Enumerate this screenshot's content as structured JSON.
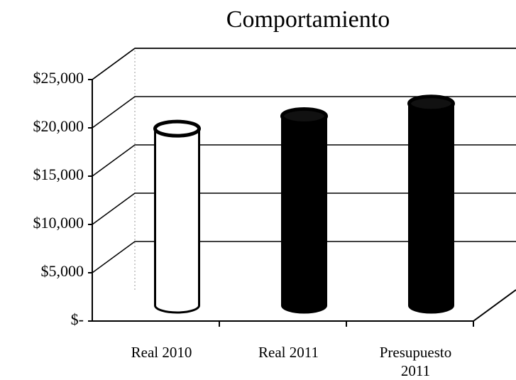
{
  "chart_data": {
    "type": "bar",
    "title": "Comportamiento",
    "categories": [
      "Real 2010",
      "Real 2011",
      "Presupuesto 2011"
    ],
    "values": [
      18300,
      19600,
      20900
    ],
    "colors": [
      "#ffffff",
      "#000000",
      "#000000"
    ],
    "ylim": [
      0,
      25000
    ],
    "yticks": [
      {
        "value": 0,
        "label": "$-"
      },
      {
        "value": 5000,
        "label": "$5,000"
      },
      {
        "value": 10000,
        "label": "$10,000"
      },
      {
        "value": 15000,
        "label": "$15,000"
      },
      {
        "value": 20000,
        "label": "$20,000"
      },
      {
        "value": 25000,
        "label": "$25,000"
      }
    ],
    "grid": true
  }
}
